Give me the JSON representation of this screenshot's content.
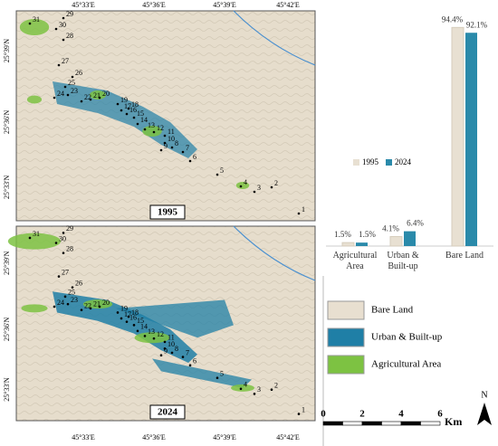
{
  "maps": {
    "panels": [
      {
        "year": "1995"
      },
      {
        "year": "2024"
      }
    ],
    "lon_labels": [
      "45°33'E",
      "45°36'E",
      "45°39'E",
      "45°42'E"
    ],
    "lat_labels": [
      "25°39'N",
      "25°36'N",
      "25°33'N"
    ],
    "point_labels": [
      "1",
      "2",
      "3",
      "4",
      "5",
      "6",
      "7",
      "8",
      "9",
      "10",
      "11",
      "12",
      "13",
      "14",
      "15",
      "16",
      "17",
      "18",
      "19",
      "20",
      "21",
      "22",
      "23",
      "24",
      "25",
      "26",
      "27",
      "28",
      "29",
      "30",
      "31"
    ]
  },
  "legend": {
    "items": [
      {
        "label": "Bare Land",
        "color": "#e8dfd0"
      },
      {
        "label": "Urban & Built-up",
        "color": "#1f7fa6"
      },
      {
        "label": "Agricultural Area",
        "color": "#7dc242"
      }
    ]
  },
  "scale_bar": {
    "ticks": [
      "0",
      "2",
      "4",
      "6"
    ],
    "unit": "Km"
  },
  "north": "N",
  "chart_data": {
    "type": "bar",
    "categories": [
      "Agricultural Area",
      "Urban & Built-up",
      "Bare Land"
    ],
    "series": [
      {
        "name": "1995",
        "color": "#e8e0d2",
        "values": [
          1.5,
          4.1,
          94.4
        ],
        "value_labels": [
          "1.5%",
          "4.1%",
          "94.4%"
        ]
      },
      {
        "name": "2024",
        "color": "#2a8aaa",
        "values": [
          1.5,
          6.4,
          92.1
        ],
        "value_labels": [
          "1.5%",
          "6.4%",
          "92.1%"
        ]
      }
    ],
    "ylim": [
      0,
      100
    ]
  }
}
